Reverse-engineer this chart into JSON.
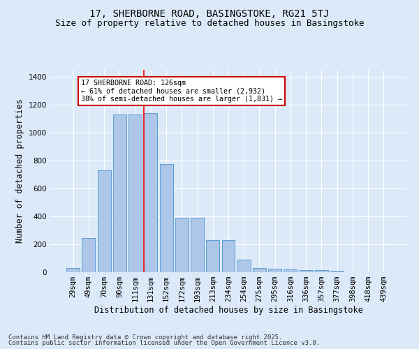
{
  "title1": "17, SHERBORNE ROAD, BASINGSTOKE, RG21 5TJ",
  "title2": "Size of property relative to detached houses in Basingstoke",
  "xlabel": "Distribution of detached houses by size in Basingstoke",
  "ylabel": "Number of detached properties",
  "categories": [
    "29sqm",
    "49sqm",
    "70sqm",
    "90sqm",
    "111sqm",
    "131sqm",
    "152sqm",
    "172sqm",
    "193sqm",
    "213sqm",
    "234sqm",
    "254sqm",
    "275sqm",
    "295sqm",
    "316sqm",
    "336sqm",
    "357sqm",
    "377sqm",
    "398sqm",
    "418sqm",
    "439sqm"
  ],
  "values": [
    30,
    245,
    730,
    1130,
    1130,
    1140,
    775,
    390,
    390,
    230,
    230,
    90,
    30,
    25,
    20,
    15,
    15,
    8,
    2,
    1,
    1
  ],
  "bar_color": "#aec6e8",
  "bar_edge_color": "#5a9fd4",
  "red_line_index": 5,
  "ylim": [
    0,
    1450
  ],
  "yticks": [
    0,
    200,
    400,
    600,
    800,
    1000,
    1200,
    1400
  ],
  "annotation_title": "17 SHERBORNE ROAD: 126sqm",
  "annotation_line1": "← 61% of detached houses are smaller (2,932)",
  "annotation_line2": "38% of semi-detached houses are larger (1,831) →",
  "annotation_box_color": "#ffffff",
  "annotation_box_edge": "#cc0000",
  "bg_color": "#dce9f8",
  "grid_color": "#ffffff",
  "footer1": "Contains HM Land Registry data © Crown copyright and database right 2025.",
  "footer2": "Contains public sector information licensed under the Open Government Licence v3.0.",
  "title1_fontsize": 10,
  "title2_fontsize": 9,
  "xlabel_fontsize": 8.5,
  "ylabel_fontsize": 8.5,
  "tick_fontsize": 7.5,
  "footer_fontsize": 6.5
}
